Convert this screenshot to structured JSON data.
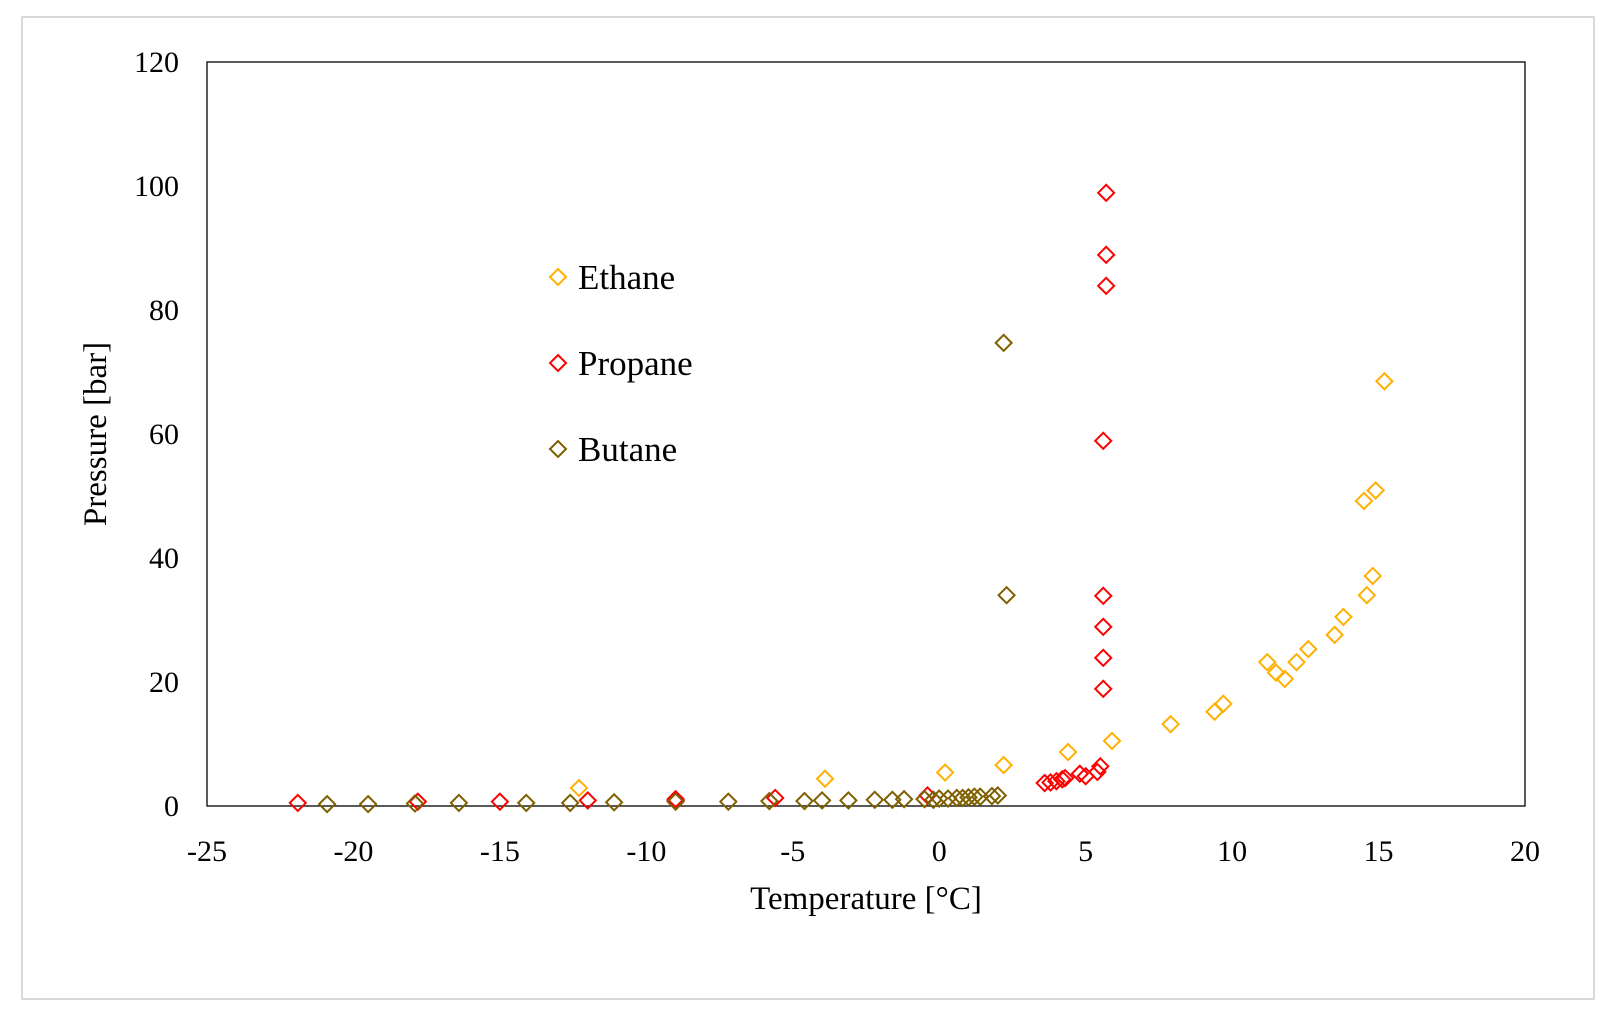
{
  "chart_data": {
    "type": "scatter",
    "title": "",
    "xlabel": "Temperature [°C]",
    "ylabel": "Pressure [bar]",
    "xlim": [
      -25,
      20
    ],
    "ylim": [
      0,
      120
    ],
    "x_ticks": [
      -25,
      -20,
      -15,
      -10,
      -5,
      0,
      5,
      10,
      15,
      20
    ],
    "y_ticks": [
      0,
      20,
      40,
      60,
      80,
      100,
      120
    ],
    "grid": false,
    "legend_position": "inside-upper-center",
    "marker": "open-diamond",
    "series": [
      {
        "name": "Ethane",
        "color": "#FFB000",
        "points": [
          [
            -12.3,
            2.9
          ],
          [
            -3.9,
            4.4
          ],
          [
            0.2,
            5.4
          ],
          [
            2.2,
            6.6
          ],
          [
            4.4,
            8.7
          ],
          [
            5.9,
            10.5
          ],
          [
            7.9,
            13.2
          ],
          [
            9.4,
            15.2
          ],
          [
            9.7,
            16.5
          ],
          [
            11.2,
            23.2
          ],
          [
            11.5,
            21.5
          ],
          [
            11.8,
            20.5
          ],
          [
            12.2,
            23.2
          ],
          [
            12.6,
            25.3
          ],
          [
            13.5,
            27.6
          ],
          [
            13.8,
            30.5
          ],
          [
            14.5,
            49.2
          ],
          [
            14.6,
            34.0
          ],
          [
            14.8,
            37.1
          ],
          [
            14.9,
            50.9
          ],
          [
            15.2,
            68.5
          ]
        ]
      },
      {
        "name": "Propane",
        "color": "#FF0000",
        "points": [
          [
            -21.9,
            0.5
          ],
          [
            -17.8,
            0.7
          ],
          [
            -15.0,
            0.7
          ],
          [
            -12.0,
            0.9
          ],
          [
            -9.0,
            1.1
          ],
          [
            -9.0,
            0.9
          ],
          [
            -5.6,
            1.3
          ],
          [
            -0.4,
            1.7
          ],
          [
            3.6,
            3.7
          ],
          [
            3.8,
            3.8
          ],
          [
            4.0,
            4.0
          ],
          [
            4.2,
            4.3
          ],
          [
            4.3,
            4.5
          ],
          [
            4.8,
            5.2
          ],
          [
            5.0,
            4.8
          ],
          [
            5.4,
            5.5
          ],
          [
            5.5,
            6.4
          ],
          [
            5.6,
            18.9
          ],
          [
            5.6,
            23.9
          ],
          [
            5.6,
            28.9
          ],
          [
            5.6,
            33.9
          ],
          [
            5.6,
            58.9
          ],
          [
            5.7,
            83.9
          ],
          [
            5.7,
            88.9
          ],
          [
            5.7,
            98.9
          ]
        ]
      },
      {
        "name": "Butane",
        "color": "#7F6000",
        "points": [
          [
            -20.9,
            0.3
          ],
          [
            -19.5,
            0.3
          ],
          [
            -17.9,
            0.4
          ],
          [
            -16.4,
            0.5
          ],
          [
            -14.1,
            0.5
          ],
          [
            -12.6,
            0.5
          ],
          [
            -11.1,
            0.6
          ],
          [
            -9.0,
            0.7
          ],
          [
            -7.2,
            0.7
          ],
          [
            -5.8,
            0.8
          ],
          [
            -4.6,
            0.8
          ],
          [
            -4.0,
            0.9
          ],
          [
            -3.1,
            0.9
          ],
          [
            -2.2,
            1.0
          ],
          [
            -1.6,
            1.0
          ],
          [
            -1.2,
            1.1
          ],
          [
            -0.5,
            1.1
          ],
          [
            -0.2,
            1.0
          ],
          [
            0.0,
            1.2
          ],
          [
            0.3,
            1.2
          ],
          [
            0.6,
            1.3
          ],
          [
            0.8,
            1.3
          ],
          [
            1.0,
            1.4
          ],
          [
            1.2,
            1.5
          ],
          [
            1.4,
            1.5
          ],
          [
            1.8,
            1.6
          ],
          [
            2.0,
            1.7
          ],
          [
            2.2,
            74.7
          ],
          [
            2.3,
            34.0
          ]
        ]
      }
    ]
  }
}
